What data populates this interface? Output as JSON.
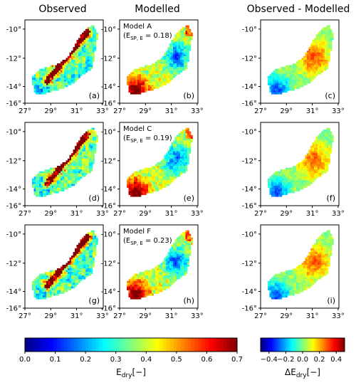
{
  "columns": [
    {
      "title": "Observed"
    },
    {
      "title": "Modelled"
    },
    {
      "title": "Observed - Modelled"
    }
  ],
  "lat_ticks": [
    "-10°",
    "-12°",
    "-14°",
    "-16°"
  ],
  "lon_ticks": [
    "27°",
    "29°",
    "31°",
    "33°"
  ],
  "panels": [
    {
      "label": "(a)",
      "type": "observed",
      "seed": 11
    },
    {
      "label": "(b)",
      "type": "modelled",
      "model": "Model A",
      "metric": "(E",
      "metric_sub": "SP, E",
      "metric_val": " = 0.18)",
      "seed": 21
    },
    {
      "label": "(c)",
      "type": "difference",
      "seed": 31
    },
    {
      "label": "(d)",
      "type": "observed",
      "seed": 12
    },
    {
      "label": "(e)",
      "type": "modelled",
      "model": "Model C",
      "metric": "(E",
      "metric_sub": "SP, E",
      "metric_val": " = 0.19)",
      "seed": 22
    },
    {
      "label": "(f)",
      "type": "difference",
      "seed": 32
    },
    {
      "label": "(g)",
      "type": "observed",
      "seed": 13
    },
    {
      "label": "(h)",
      "type": "modelled",
      "model": "Model F",
      "metric": "(E",
      "metric_sub": "SP, E",
      "metric_val": " = 0.23)",
      "seed": 23
    },
    {
      "label": "(i)",
      "type": "difference",
      "seed": 33
    }
  ],
  "colorbar_main": {
    "min": 0.0,
    "max": 0.7,
    "ticks": [
      "0.0",
      "0.1",
      "0.2",
      "0.3",
      "0.4",
      "0.5",
      "0.6",
      "0.7"
    ],
    "label": "E",
    "label_sub": "dry",
    "label_unit": "[−]"
  },
  "colorbar_diff": {
    "min": -0.5,
    "max": 0.5,
    "ticks": [
      "−0.4",
      "−0.2",
      "0.0",
      "0.2",
      "0.4"
    ],
    "label": "ΔE",
    "label_sub": "dry",
    "label_unit": "[−]"
  },
  "colormap": "jet"
}
